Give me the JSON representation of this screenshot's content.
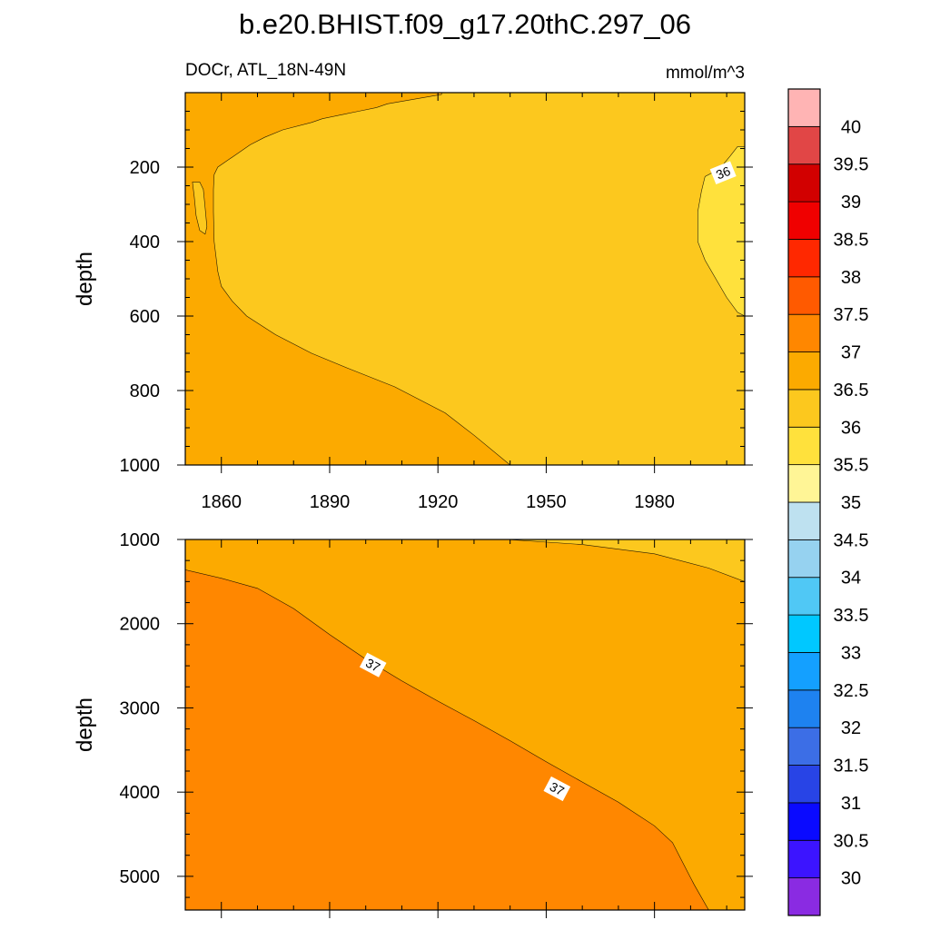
{
  "chart_data": {
    "type": "heatmap",
    "title": "b.e20.BHIST.f09_g17.20thC.297_06",
    "left_string": "DOCr, ATL_18N-49N",
    "right_string": "mmol/m^3",
    "x_ticks": [
      1860,
      1890,
      1920,
      1950,
      1980
    ],
    "x_range": [
      1850,
      2005
    ],
    "colorbar": {
      "colors": [
        "#8a2be2",
        "#3c14ff",
        "#0a0aff",
        "#2844e6",
        "#3c6ee6",
        "#1e82f0",
        "#14a0ff",
        "#00c8ff",
        "#50c8f5",
        "#96d2f0",
        "#bee1f0",
        "#fff596",
        "#ffe13c",
        "#fcc81e",
        "#fcaa00",
        "#ff8700",
        "#ff5a00",
        "#ff2800",
        "#f00000",
        "#d20000",
        "#e14646",
        "#ffb4b4"
      ],
      "tick_labels": [
        "30",
        "30.5",
        "31",
        "31.5",
        "32",
        "32.5",
        "33",
        "33.5",
        "34",
        "34.5",
        "35",
        "35.5",
        "36",
        "36.5",
        "37",
        "37.5",
        "38",
        "38.5",
        "39",
        "39.5",
        "40"
      ]
    },
    "panels": [
      {
        "name": "upper",
        "ylabel": "depth",
        "y_range": [
          0,
          1000
        ],
        "y_ticks": [
          200,
          400,
          600,
          800,
          1000
        ],
        "show_x_labels": true,
        "background_color": "#fcaa00",
        "regions": [
          {
            "name": "region-36-36.5",
            "color": "#fcc81e",
            "boundary": [
              [
                1921,
                0
              ],
              [
                1921,
                5
              ],
              [
                1918,
                10
              ],
              [
                1912,
                20
              ],
              [
                1906,
                30
              ],
              [
                1903,
                40
              ],
              [
                1898,
                50
              ],
              [
                1893,
                60
              ],
              [
                1888,
                70
              ],
              [
                1885,
                80
              ],
              [
                1877,
                100
              ],
              [
                1872,
                120
              ],
              [
                1868,
                140
              ],
              [
                1865,
                160
              ],
              [
                1862,
                180
              ],
              [
                1859,
                200
              ],
              [
                1858,
                220
              ],
              [
                1857.8,
                260
              ],
              [
                1857.8,
                320
              ],
              [
                1858,
                400
              ],
              [
                1859,
                480
              ],
              [
                1860,
                520
              ],
              [
                1863,
                560
              ],
              [
                1867,
                600
              ],
              [
                1875,
                650
              ],
              [
                1885,
                700
              ],
              [
                1895,
                740
              ],
              [
                1908,
                790
              ],
              [
                1922,
                860
              ],
              [
                1930,
                920
              ],
              [
                1940,
                1000
              ],
              [
                2005,
                1000
              ],
              [
                2005,
                0
              ]
            ]
          },
          {
            "name": "region-35.5-36",
            "color": "#ffe13c",
            "boundary": [
              [
                2005,
                145
              ],
              [
                2003,
                145
              ],
              [
                2001,
                170
              ],
              [
                1998,
                205
              ],
              [
                1994,
                225
              ],
              [
                1993,
                265
              ],
              [
                1992,
                320
              ],
              [
                1992,
                400
              ],
              [
                1994,
                450
              ],
              [
                1997,
                500
              ],
              [
                2000,
                550
              ],
              [
                2003,
                590
              ],
              [
                2005,
                600
              ]
            ]
          },
          {
            "name": "region-edge-pocket",
            "color": "#fcc81e",
            "boundary": [
              [
                1852,
                240
              ],
              [
                1854,
                240
              ],
              [
                1855,
                260
              ],
              [
                1855.5,
                310
              ],
              [
                1856,
                360
              ],
              [
                1855.5,
                380
              ],
              [
                1854,
                370
              ],
              [
                1853,
                330
              ],
              [
                1852.5,
                280
              ]
            ]
          }
        ],
        "contour_labels": [
          {
            "text": "36",
            "x": 1999,
            "y": 215,
            "angle": -22
          }
        ]
      },
      {
        "name": "lower",
        "ylabel": "depth",
        "y_range": [
          1000,
          5400
        ],
        "y_ticks": [
          1000,
          2000,
          3000,
          4000,
          5000
        ],
        "show_x_labels": false,
        "background_color": "#fcaa00",
        "regions": [
          {
            "name": "region-37-37.5",
            "color": "#ff8700",
            "boundary": [
              [
                1850,
                1360
              ],
              [
                1860,
                1460
              ],
              [
                1870,
                1580
              ],
              [
                1880,
                1820
              ],
              [
                1890,
                2130
              ],
              [
                1900,
                2420
              ],
              [
                1910,
                2680
              ],
              [
                1920,
                2920
              ],
              [
                1930,
                3150
              ],
              [
                1940,
                3390
              ],
              [
                1950,
                3640
              ],
              [
                1960,
                3880
              ],
              [
                1970,
                4120
              ],
              [
                1980,
                4400
              ],
              [
                1985,
                4600
              ],
              [
                1988,
                4850
              ],
              [
                1991,
                5100
              ],
              [
                1995,
                5400
              ],
              [
                1850,
                5400
              ]
            ]
          },
          {
            "name": "region-36-36.5-top",
            "color": "#fcc81e",
            "boundary": [
              [
                1939,
                1000
              ],
              [
                1960,
                1060
              ],
              [
                1980,
                1170
              ],
              [
                1995,
                1340
              ],
              [
                2005,
                1500
              ],
              [
                2005,
                1000
              ]
            ]
          }
        ],
        "contour_labels": [
          {
            "text": "37",
            "x": 1902,
            "y": 2490,
            "angle": 28
          },
          {
            "text": "37",
            "x": 1953,
            "y": 3960,
            "angle": 28
          }
        ]
      }
    ]
  }
}
